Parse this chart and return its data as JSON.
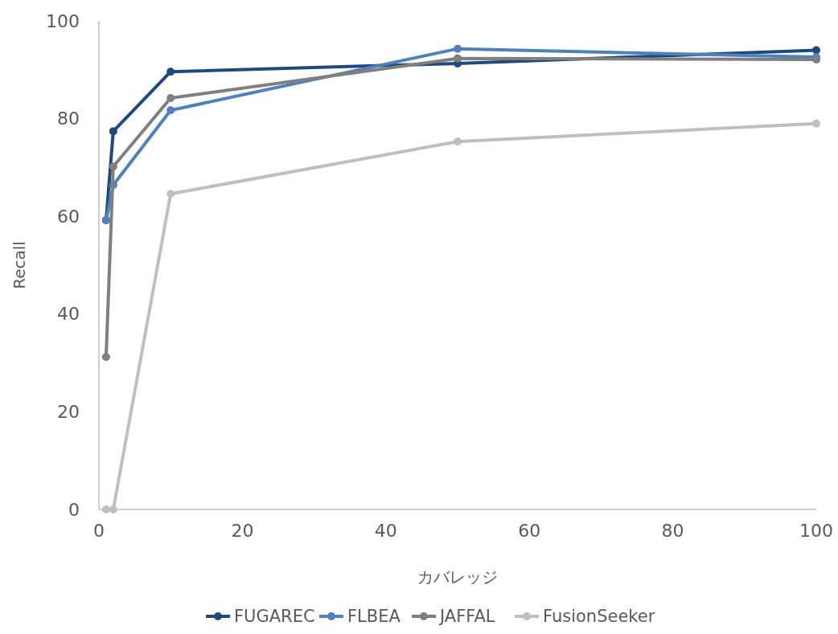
{
  "chart_data": {
    "type": "line",
    "xlabel": "カバレッジ",
    "ylabel": "Recall",
    "x": [
      1,
      2,
      10,
      50,
      100
    ],
    "xlim": [
      0,
      100
    ],
    "xticks": [
      0,
      20,
      40,
      60,
      80,
      100
    ],
    "ylim": [
      0,
      100
    ],
    "yticks": [
      0,
      20,
      40,
      60,
      80,
      100
    ],
    "grid": false,
    "legend": "bottom",
    "marker": "circle",
    "line_style": "solid",
    "series": [
      {
        "name": "FUGAREC",
        "color": "#1f497d",
        "values": [
          59.2,
          77.4,
          89.6,
          91.3,
          94.0
        ]
      },
      {
        "name": "FLBEA",
        "color": "#4f81bd",
        "values": [
          59.2,
          66.4,
          81.7,
          94.3,
          92.6
        ]
      },
      {
        "name": "JAFFAL",
        "color": "#7f7f7f",
        "values": [
          31.2,
          70.2,
          84.2,
          92.3,
          92.1
        ]
      },
      {
        "name": "FusionSeeker",
        "color": "#bfbfbf",
        "values": [
          0,
          0,
          64.6,
          75.3,
          79.0
        ]
      }
    ]
  }
}
